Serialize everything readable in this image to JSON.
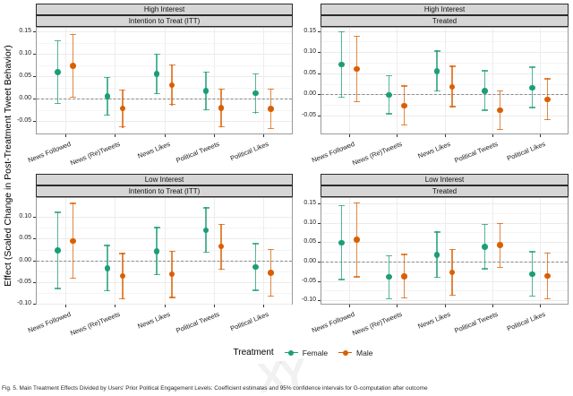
{
  "figure": {
    "y_axis_label": "Effect (Scaled Change in Post-Treatment Tweet Behavior)",
    "legend": {
      "title": "Treatment",
      "entries": [
        {
          "label": "Female",
          "color": "#1b9e77"
        },
        {
          "label": "Male",
          "color": "#d95f02"
        }
      ]
    },
    "caption": "Fig. 5. Main Treatment Effects Divided by Users' Prior Political Engagement Levels: Coefficient estimates and 95% confidence intervals for G-computation after outcome",
    "watermark": "XY",
    "colors": {
      "female": "#1b9e77",
      "male": "#d95f02",
      "strip_bg": "#d6d6d6",
      "zero_line": "#8a8a8a"
    }
  },
  "chart_data": {
    "type": "pointrange",
    "categories": [
      "News Followed",
      "News (Re)Tweets",
      "News Likes",
      "Political Tweets",
      "Political Likes"
    ],
    "legend_position": "bottom",
    "grid": true,
    "panels": [
      {
        "row": "High Interest",
        "col": "Intention to Treat (ITT)",
        "ylim": [
          -0.08,
          0.16
        ],
        "yticks": [
          0.15,
          0.1,
          0.05,
          0.0,
          -0.05
        ],
        "series": [
          {
            "name": "Female",
            "color": "#1b9e77",
            "points": [
              {
                "est": 0.059,
                "lo": -0.012,
                "hi": 0.131
              },
              {
                "est": 0.005,
                "lo": -0.038,
                "hi": 0.048
              },
              {
                "est": 0.055,
                "lo": 0.01,
                "hi": 0.1
              },
              {
                "est": 0.017,
                "lo": -0.026,
                "hi": 0.061
              },
              {
                "est": 0.012,
                "lo": -0.033,
                "hi": 0.057
              }
            ]
          },
          {
            "name": "Male",
            "color": "#d95f02",
            "points": [
              {
                "est": 0.073,
                "lo": 0.002,
                "hi": 0.145
              },
              {
                "est": -0.022,
                "lo": -0.065,
                "hi": 0.021
              },
              {
                "est": 0.03,
                "lo": -0.015,
                "hi": 0.076
              },
              {
                "est": -0.021,
                "lo": -0.064,
                "hi": 0.023
              },
              {
                "est": -0.023,
                "lo": -0.068,
                "hi": 0.022
              }
            ]
          }
        ]
      },
      {
        "row": "High Interest",
        "col": "Treated",
        "ylim": [
          -0.095,
          0.16
        ],
        "yticks": [
          0.15,
          0.1,
          0.05,
          0.0,
          -0.05
        ],
        "series": [
          {
            "name": "Female",
            "color": "#1b9e77",
            "points": [
              {
                "est": 0.071,
                "lo": -0.008,
                "hi": 0.15
              },
              {
                "est": -0.002,
                "lo": -0.048,
                "hi": 0.046
              },
              {
                "est": 0.055,
                "lo": 0.006,
                "hi": 0.104
              },
              {
                "est": 0.008,
                "lo": -0.039,
                "hi": 0.057
              },
              {
                "est": 0.016,
                "lo": -0.033,
                "hi": 0.066
              }
            ]
          },
          {
            "name": "Male",
            "color": "#d95f02",
            "points": [
              {
                "est": 0.06,
                "lo": -0.019,
                "hi": 0.139
              },
              {
                "est": -0.027,
                "lo": -0.074,
                "hi": 0.021
              },
              {
                "est": 0.018,
                "lo": -0.031,
                "hi": 0.068
              },
              {
                "est": -0.038,
                "lo": -0.085,
                "hi": 0.01
              },
              {
                "est": -0.012,
                "lo": -0.061,
                "hi": 0.038
              }
            ]
          }
        ]
      },
      {
        "row": "Low Interest",
        "col": "Intention to Treat (ITT)",
        "ylim": [
          -0.102,
          0.146
        ],
        "yticks": [
          0.1,
          0.05,
          0.0,
          -0.05,
          -0.1
        ],
        "series": [
          {
            "name": "Female",
            "color": "#1b9e77",
            "points": [
              {
                "est": 0.023,
                "lo": -0.066,
                "hi": 0.112
              },
              {
                "est": -0.018,
                "lo": -0.071,
                "hi": 0.036
              },
              {
                "est": 0.021,
                "lo": -0.034,
                "hi": 0.077
              },
              {
                "est": 0.07,
                "lo": 0.017,
                "hi": 0.123
              },
              {
                "est": -0.015,
                "lo": -0.07,
                "hi": 0.04
              }
            ]
          },
          {
            "name": "Male",
            "color": "#d95f02",
            "points": [
              {
                "est": 0.045,
                "lo": -0.043,
                "hi": 0.133
              },
              {
                "est": -0.036,
                "lo": -0.09,
                "hi": 0.017
              },
              {
                "est": -0.032,
                "lo": -0.087,
                "hi": 0.023
              },
              {
                "est": 0.032,
                "lo": -0.022,
                "hi": 0.085
              },
              {
                "est": -0.029,
                "lo": -0.084,
                "hi": 0.026
              }
            ]
          }
        ]
      },
      {
        "row": "Low Interest",
        "col": "Treated",
        "ylim": [
          -0.111,
          0.166
        ],
        "yticks": [
          0.15,
          0.1,
          0.05,
          0.0,
          -0.05,
          -0.1
        ],
        "series": [
          {
            "name": "Female",
            "color": "#1b9e77",
            "points": [
              {
                "est": 0.048,
                "lo": -0.048,
                "hi": 0.145
              },
              {
                "est": -0.04,
                "lo": -0.098,
                "hi": 0.017
              },
              {
                "est": 0.017,
                "lo": -0.042,
                "hi": 0.078
              },
              {
                "est": 0.038,
                "lo": -0.02,
                "hi": 0.097
              },
              {
                "est": -0.032,
                "lo": -0.091,
                "hi": 0.027
              }
            ]
          },
          {
            "name": "Male",
            "color": "#d95f02",
            "points": [
              {
                "est": 0.056,
                "lo": -0.041,
                "hi": 0.153
              },
              {
                "est": -0.038,
                "lo": -0.096,
                "hi": 0.02
              },
              {
                "est": -0.028,
                "lo": -0.088,
                "hi": 0.033
              },
              {
                "est": 0.042,
                "lo": -0.017,
                "hi": 0.1
              },
              {
                "est": -0.037,
                "lo": -0.097,
                "hi": 0.023
              }
            ]
          }
        ]
      }
    ]
  }
}
